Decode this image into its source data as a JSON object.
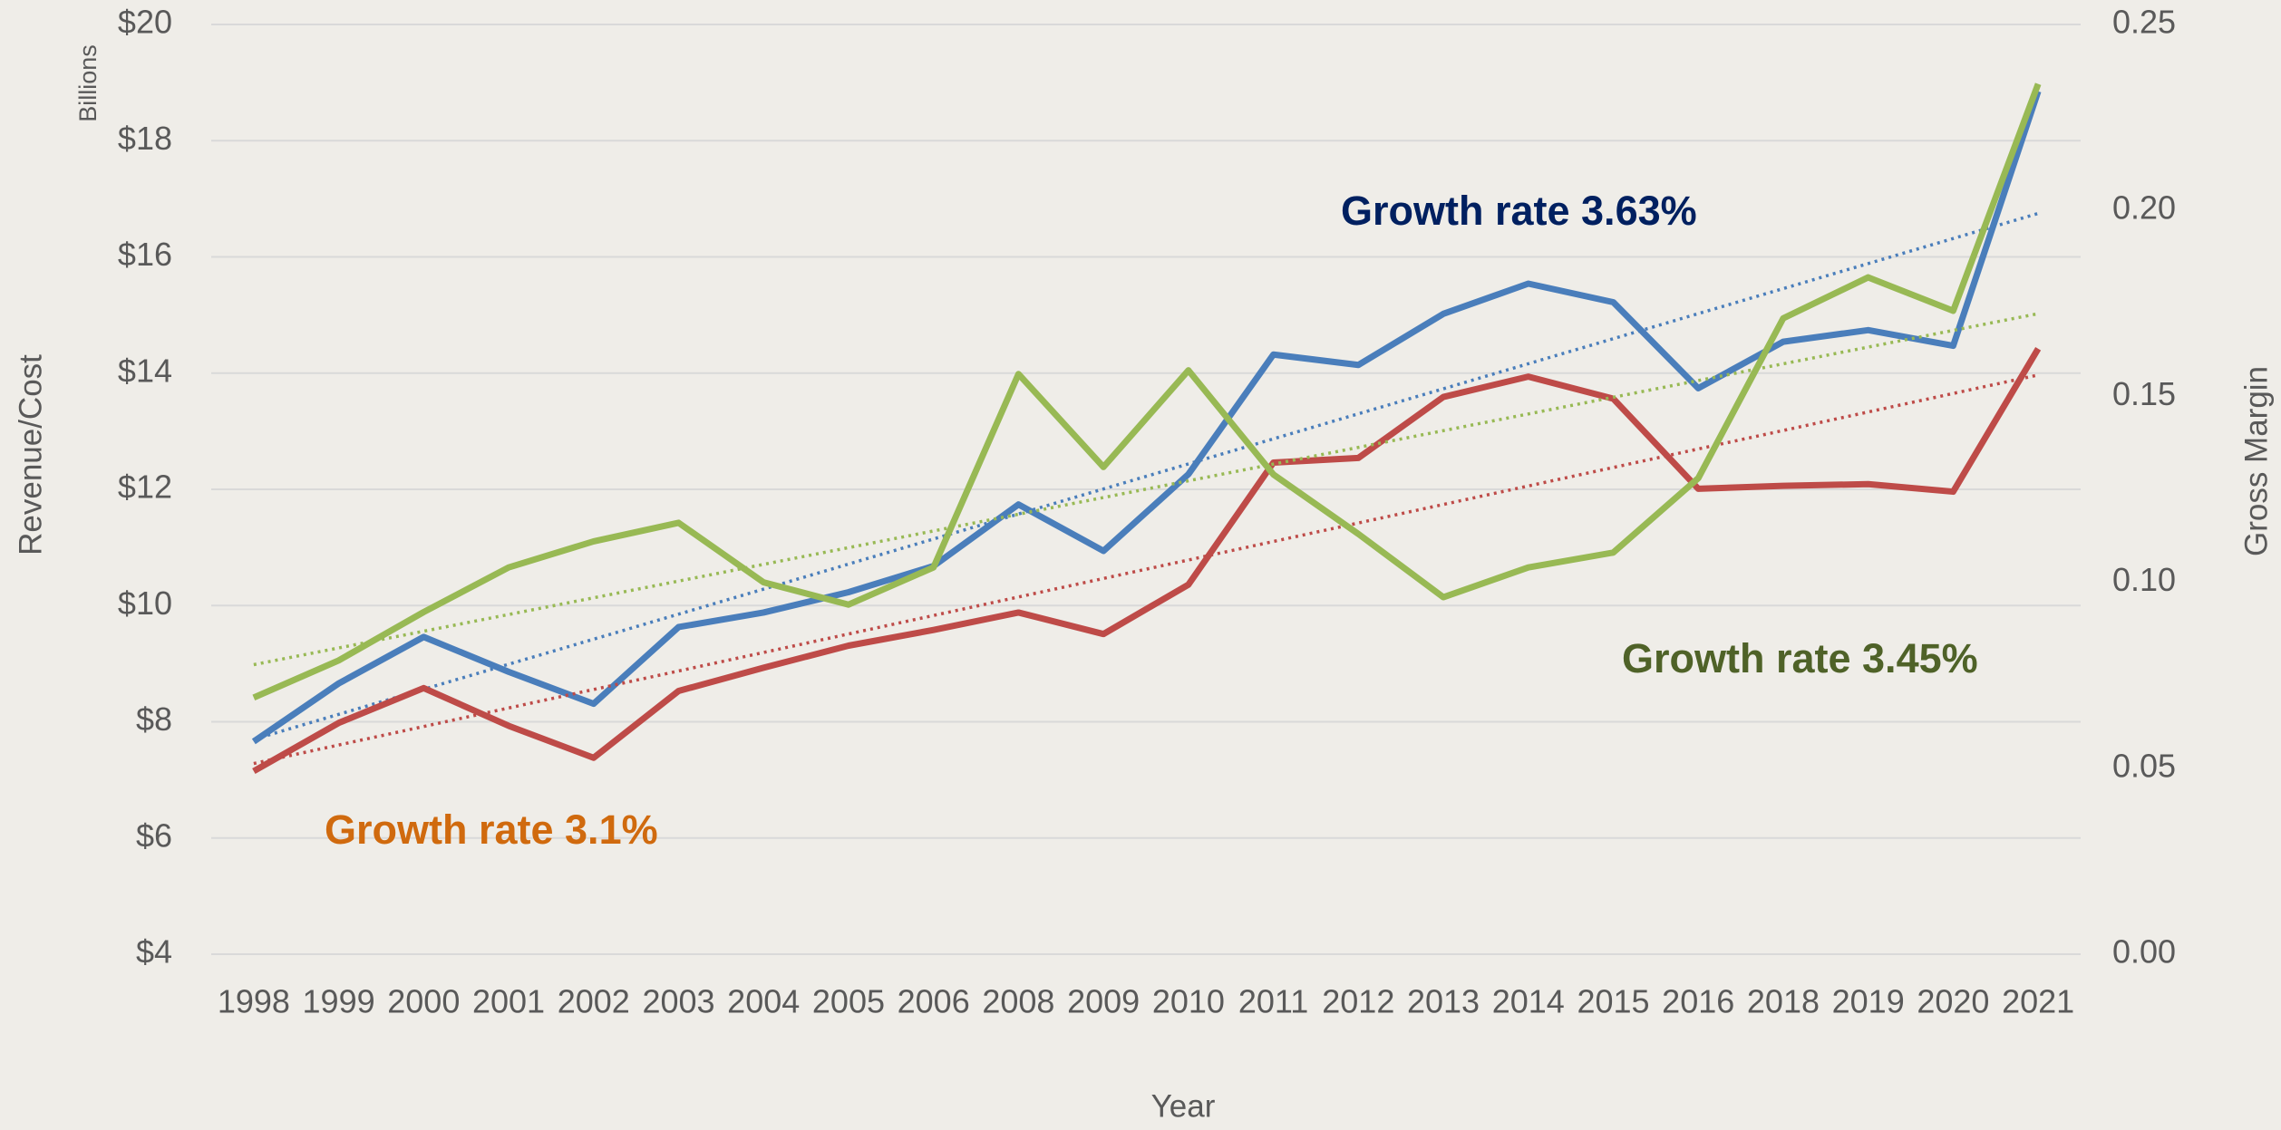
{
  "chart_data": {
    "type": "line",
    "y_axis_label": "Revenue/Cost",
    "y_axis_unit": "Billions",
    "y2_axis_label": "Gross Margin",
    "x_axis_label": "Year",
    "categories": [
      "1998",
      "1999",
      "2000",
      "2001",
      "2002",
      "2003",
      "2004",
      "2005",
      "2006",
      "2008",
      "2009",
      "2010",
      "2011",
      "2012",
      "2013",
      "2014",
      "2015",
      "2016",
      "2018",
      "2019",
      "2020",
      "2021"
    ],
    "series": [
      {
        "color": "#4a7ebb",
        "values": [
          7.66,
          8.66,
          9.46,
          8.86,
          8.31,
          9.63,
          9.88,
          10.23,
          10.68,
          11.74,
          10.94,
          12.26,
          14.32,
          14.14,
          15.02,
          15.54,
          15.22,
          13.74,
          14.54,
          14.74,
          14.47,
          18.85
        ]
      },
      {
        "color": "#be4b48",
        "values": [
          7.15,
          7.98,
          8.58,
          7.93,
          7.38,
          8.53,
          8.93,
          9.31,
          9.58,
          9.88,
          9.51,
          10.36,
          12.46,
          12.54,
          13.59,
          13.94,
          13.56,
          12.01,
          12.06,
          12.09,
          11.96,
          14.42
        ]
      },
      {
        "color": "#98b954",
        "axis": "y2",
        "values": [
          0.069,
          0.079,
          0.092,
          0.104,
          0.111,
          0.116,
          0.1,
          0.094,
          0.104,
          0.156,
          0.131,
          0.157,
          0.129,
          0.113,
          0.096,
          0.104,
          0.108,
          0.128,
          0.171,
          0.182,
          0.173,
          0.234
        ]
      }
    ],
    "trendline": true,
    "ylim": [
      4,
      20
    ],
    "yticks": [
      {
        "value": 4,
        "label": "$4"
      },
      {
        "value": 6,
        "label": "$6"
      },
      {
        "value": 8,
        "label": "$8"
      },
      {
        "value": 10,
        "label": "$10"
      },
      {
        "value": 12,
        "label": "$12"
      },
      {
        "value": 14,
        "label": "$14"
      },
      {
        "value": 16,
        "label": "$16"
      },
      {
        "value": 18,
        "label": "$18"
      },
      {
        "value": 20,
        "label": "$20"
      }
    ],
    "y2lim": [
      0,
      0.25
    ],
    "y2ticks": [
      {
        "value": 0,
        "label": "0.00"
      },
      {
        "value": 0.05,
        "label": "0.05"
      },
      {
        "value": 0.1,
        "label": "0.10"
      },
      {
        "value": 0.15,
        "label": "0.15"
      },
      {
        "value": 0.2,
        "label": "0.20"
      },
      {
        "value": 0.25,
        "label": "0.25"
      }
    ],
    "grid": true,
    "annotations": [
      {
        "text": "Growth rate 3.63%",
        "color": "#002060"
      },
      {
        "text": "Growth rate 3.45%",
        "color": "#4f6228"
      },
      {
        "text": "Growth rate 3.1%",
        "color": "#d06a0e"
      }
    ]
  }
}
